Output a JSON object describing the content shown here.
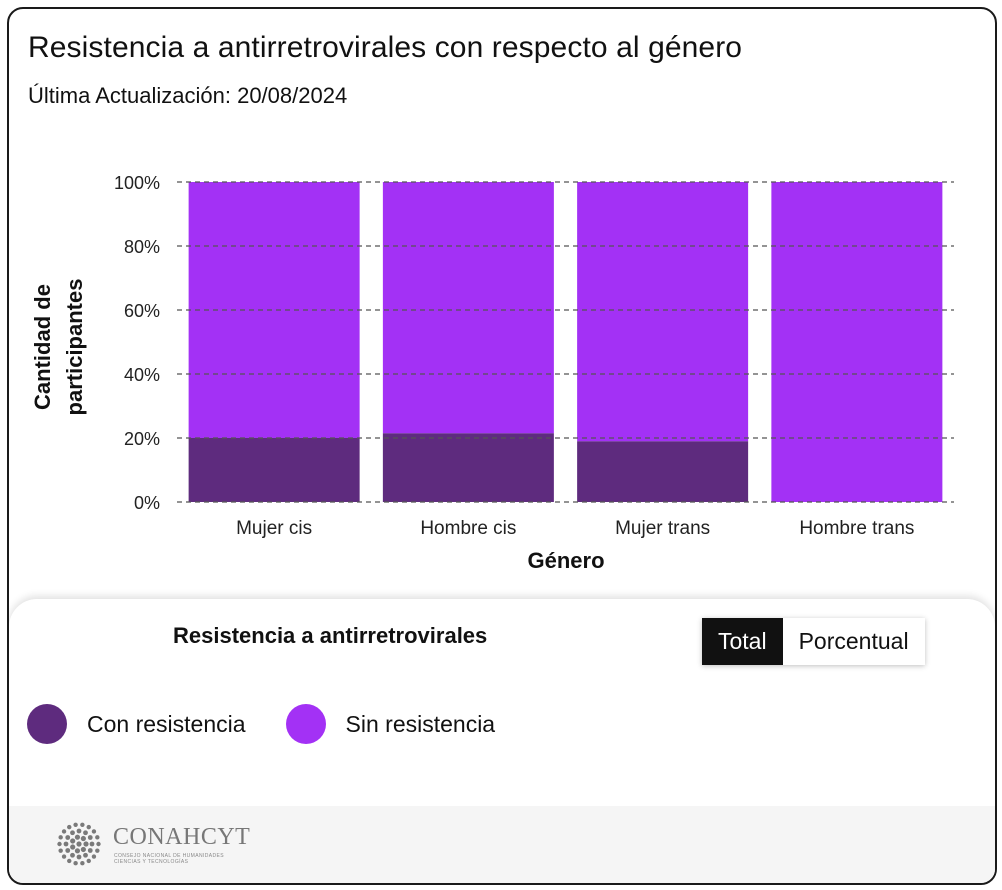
{
  "header": {
    "title": "Resistencia a antirretrovirales con respecto al género",
    "subtitle": "Última Actualización: 20/08/2024"
  },
  "chart_data": {
    "type": "bar",
    "stacked": true,
    "categories": [
      "Mujer cis",
      "Hombre cis",
      "Mujer trans",
      "Hombre trans"
    ],
    "series": [
      {
        "name": "Con resistencia",
        "values": [
          20,
          21.5,
          19,
          0
        ],
        "color": "#5e2b7e"
      },
      {
        "name": "Sin resistencia",
        "values": [
          80,
          78.5,
          81,
          100
        ],
        "color": "#a331f5"
      }
    ],
    "xlabel": "Género",
    "ylabel_lines": [
      "Cantidad de",
      "participantes"
    ],
    "yticks": [
      0,
      20,
      40,
      60,
      80,
      100
    ],
    "ytick_labels": [
      "0%",
      "20%",
      "40%",
      "60%",
      "80%",
      "100%"
    ],
    "ylim": [
      0,
      100
    ],
    "grid": true
  },
  "legend": {
    "title": "Resistencia a antirretrovirales",
    "toggle": {
      "total": "Total",
      "percent": "Porcentual"
    },
    "items": [
      {
        "label": "Con resistencia",
        "color": "#5e2b7e"
      },
      {
        "label": "Sin resistencia",
        "color": "#a331f5"
      }
    ]
  },
  "footer": {
    "logo_text": "CONAHCYT",
    "logo_sub_1": "CONSEJO NACIONAL DE HUMANIDADES",
    "logo_sub_2": "CIENCIAS Y TECNOLOGÍAS"
  }
}
